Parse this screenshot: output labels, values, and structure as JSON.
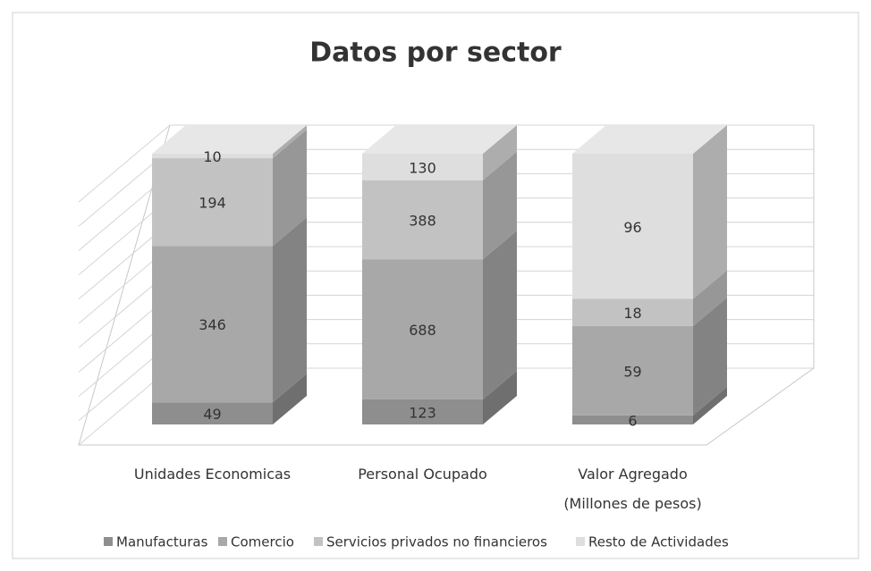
{
  "chart_data": {
    "type": "bar",
    "stacking": "percent",
    "three_d": true,
    "title": "Datos por sector",
    "categories": [
      "Unidades Economicas",
      "Personal Ocupado",
      "Valor Agregado\n(Millones de pesos)"
    ],
    "series": [
      {
        "name": "Manufacturas",
        "color": "#8e8e8e",
        "values": [
          49,
          123,
          6
        ]
      },
      {
        "name": "Comercio",
        "color": "#a8a8a8",
        "values": [
          346,
          688,
          59
        ]
      },
      {
        "name": "Servicios privados no financieros",
        "color": "#c2c2c2",
        "values": [
          194,
          388,
          18
        ]
      },
      {
        "name": "Resto de Actividades",
        "color": "#dedede",
        "values": [
          10,
          130,
          96
        ]
      }
    ],
    "legend": "bottom"
  }
}
